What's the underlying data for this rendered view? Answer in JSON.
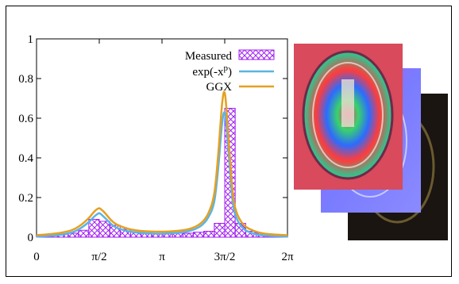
{
  "chart_data": {
    "type": "bar",
    "title": "",
    "xlabel": "",
    "ylabel": "",
    "xlim": [
      0,
      6.2832
    ],
    "ylim": [
      0,
      1
    ],
    "x_ticks": [
      {
        "value": 0,
        "label": "0"
      },
      {
        "value": 1.5708,
        "label": "π/2"
      },
      {
        "value": 3.1416,
        "label": "π"
      },
      {
        "value": 4.7124,
        "label": "3π/2"
      },
      {
        "value": 6.2832,
        "label": "2π"
      }
    ],
    "y_ticks": [
      {
        "value": 0,
        "label": "0"
      },
      {
        "value": 0.2,
        "label": "0.2"
      },
      {
        "value": 0.4,
        "label": "0.4"
      },
      {
        "value": 0.6,
        "label": "0.6"
      },
      {
        "value": 0.8,
        "label": "0.8"
      },
      {
        "value": 1,
        "label": "1"
      }
    ],
    "legend_position": "top-right",
    "histogram": {
      "name": "Measured",
      "bin_width": 0.2618,
      "bin_starts": [
        0,
        0.2618,
        0.5236,
        0.7854,
        1.0472,
        1.309,
        1.5708,
        1.8326,
        2.0944,
        2.3562,
        2.618,
        2.8798,
        3.1416,
        3.4034,
        3.6652,
        3.927,
        4.1888,
        4.4506,
        4.7124,
        4.9742,
        5.236,
        5.4978,
        5.7596,
        6.0214
      ],
      "values": [
        0.005,
        0.01,
        0.015,
        0.02,
        0.035,
        0.09,
        0.08,
        0.06,
        0.04,
        0.025,
        0.02,
        0.02,
        0.025,
        0.02,
        0.02,
        0.025,
        0.03,
        0.07,
        0.65,
        0.07,
        0.03,
        0.02,
        0.01,
        0.005
      ],
      "color": "#a020f0"
    },
    "series": [
      {
        "name": "exp(-xp)",
        "color": "#5ab4e5",
        "x": [
          0,
          0.3,
          0.6,
          0.9,
          1.1,
          1.3,
          1.45,
          1.55,
          1.6,
          1.7,
          1.85,
          2.0,
          2.3,
          2.6,
          3.0,
          3.4,
          3.8,
          4.1,
          4.3,
          4.45,
          4.55,
          4.65,
          4.72,
          4.8,
          4.9,
          5.0,
          5.2,
          5.5,
          5.8,
          6.2832
        ],
        "y": [
          0.003,
          0.006,
          0.012,
          0.025,
          0.045,
          0.075,
          0.105,
          0.12,
          0.118,
          0.1,
          0.07,
          0.048,
          0.03,
          0.022,
          0.018,
          0.02,
          0.03,
          0.055,
          0.1,
          0.18,
          0.35,
          0.58,
          0.62,
          0.45,
          0.2,
          0.1,
          0.04,
          0.015,
          0.007,
          0.003
        ]
      },
      {
        "name": "GGX",
        "color": "#e5a021",
        "x": [
          0,
          0.3,
          0.6,
          0.9,
          1.1,
          1.3,
          1.45,
          1.55,
          1.6,
          1.7,
          1.85,
          2.0,
          2.3,
          2.6,
          3.0,
          3.4,
          3.8,
          4.1,
          4.3,
          4.45,
          4.55,
          4.65,
          4.72,
          4.8,
          4.9,
          5.0,
          5.2,
          5.5,
          5.8,
          6.2832
        ],
        "y": [
          0.01,
          0.015,
          0.022,
          0.037,
          0.06,
          0.095,
          0.13,
          0.145,
          0.143,
          0.125,
          0.09,
          0.065,
          0.042,
          0.032,
          0.028,
          0.03,
          0.04,
          0.068,
          0.12,
          0.22,
          0.42,
          0.68,
          0.72,
          0.52,
          0.25,
          0.13,
          0.06,
          0.028,
          0.016,
          0.01
        ]
      }
    ]
  },
  "legend": {
    "measured_label": "Measured",
    "exp_base": "exp(-x",
    "exp_sup": "p",
    "exp_close": ")",
    "ggx_label": "GGX"
  }
}
